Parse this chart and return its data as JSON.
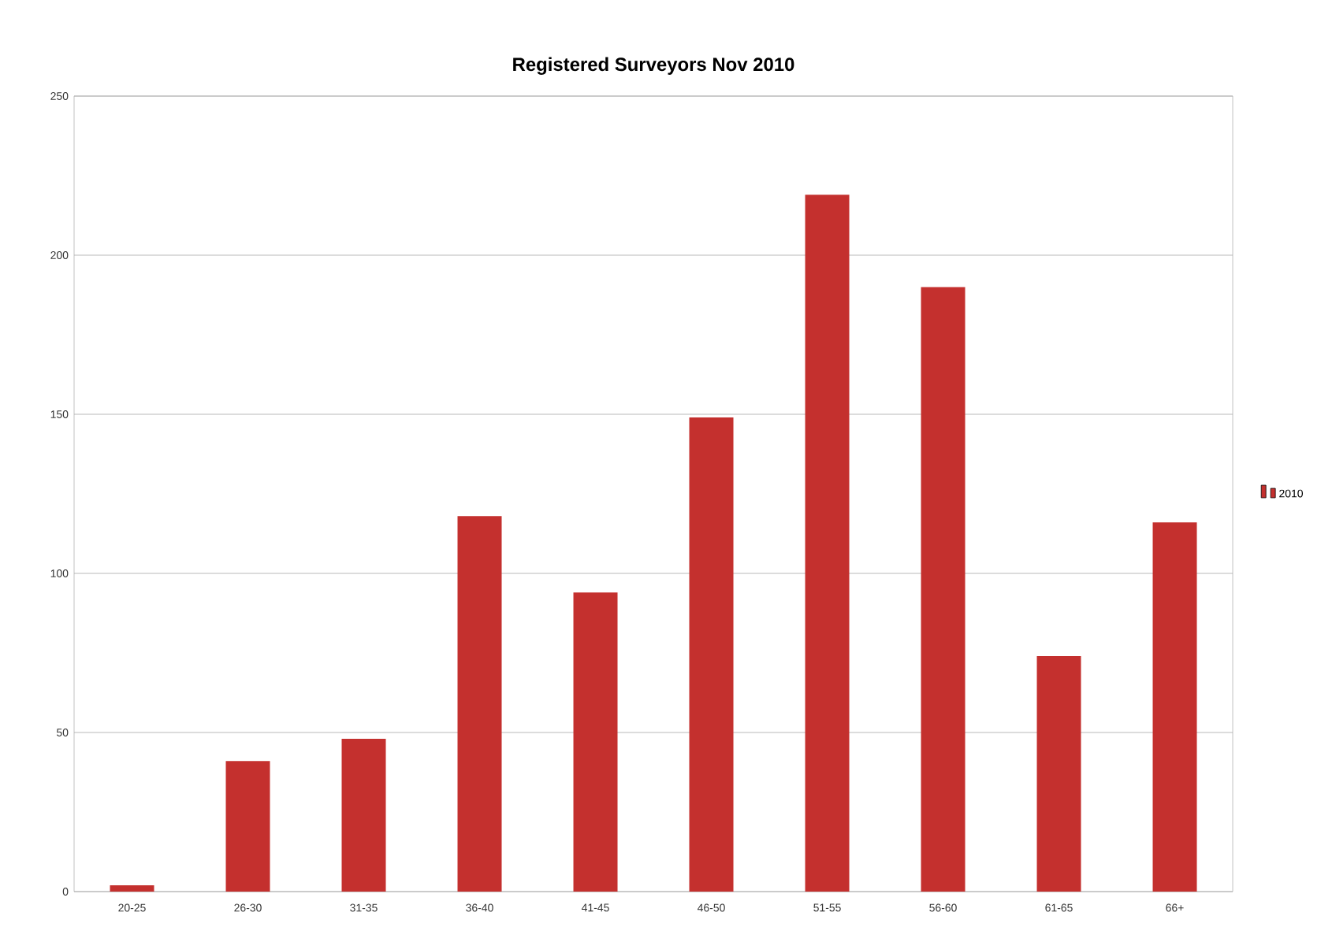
{
  "chart_data": {
    "type": "bar",
    "title": "Registered Surveyors Nov 2010",
    "categories": [
      "20-25",
      "26-30",
      "31-35",
      "36-40",
      "41-45",
      "46-50",
      "51-55",
      "56-60",
      "61-65",
      "66+"
    ],
    "series": [
      {
        "name": "2010",
        "color": "#c4302e",
        "values": [
          2,
          41,
          48,
          118,
          94,
          149,
          219,
          190,
          74,
          116
        ]
      }
    ],
    "ylim": [
      0,
      250
    ],
    "yticks": [
      0,
      50,
      100,
      150,
      200,
      250
    ],
    "grid": "y",
    "legend": "right"
  }
}
